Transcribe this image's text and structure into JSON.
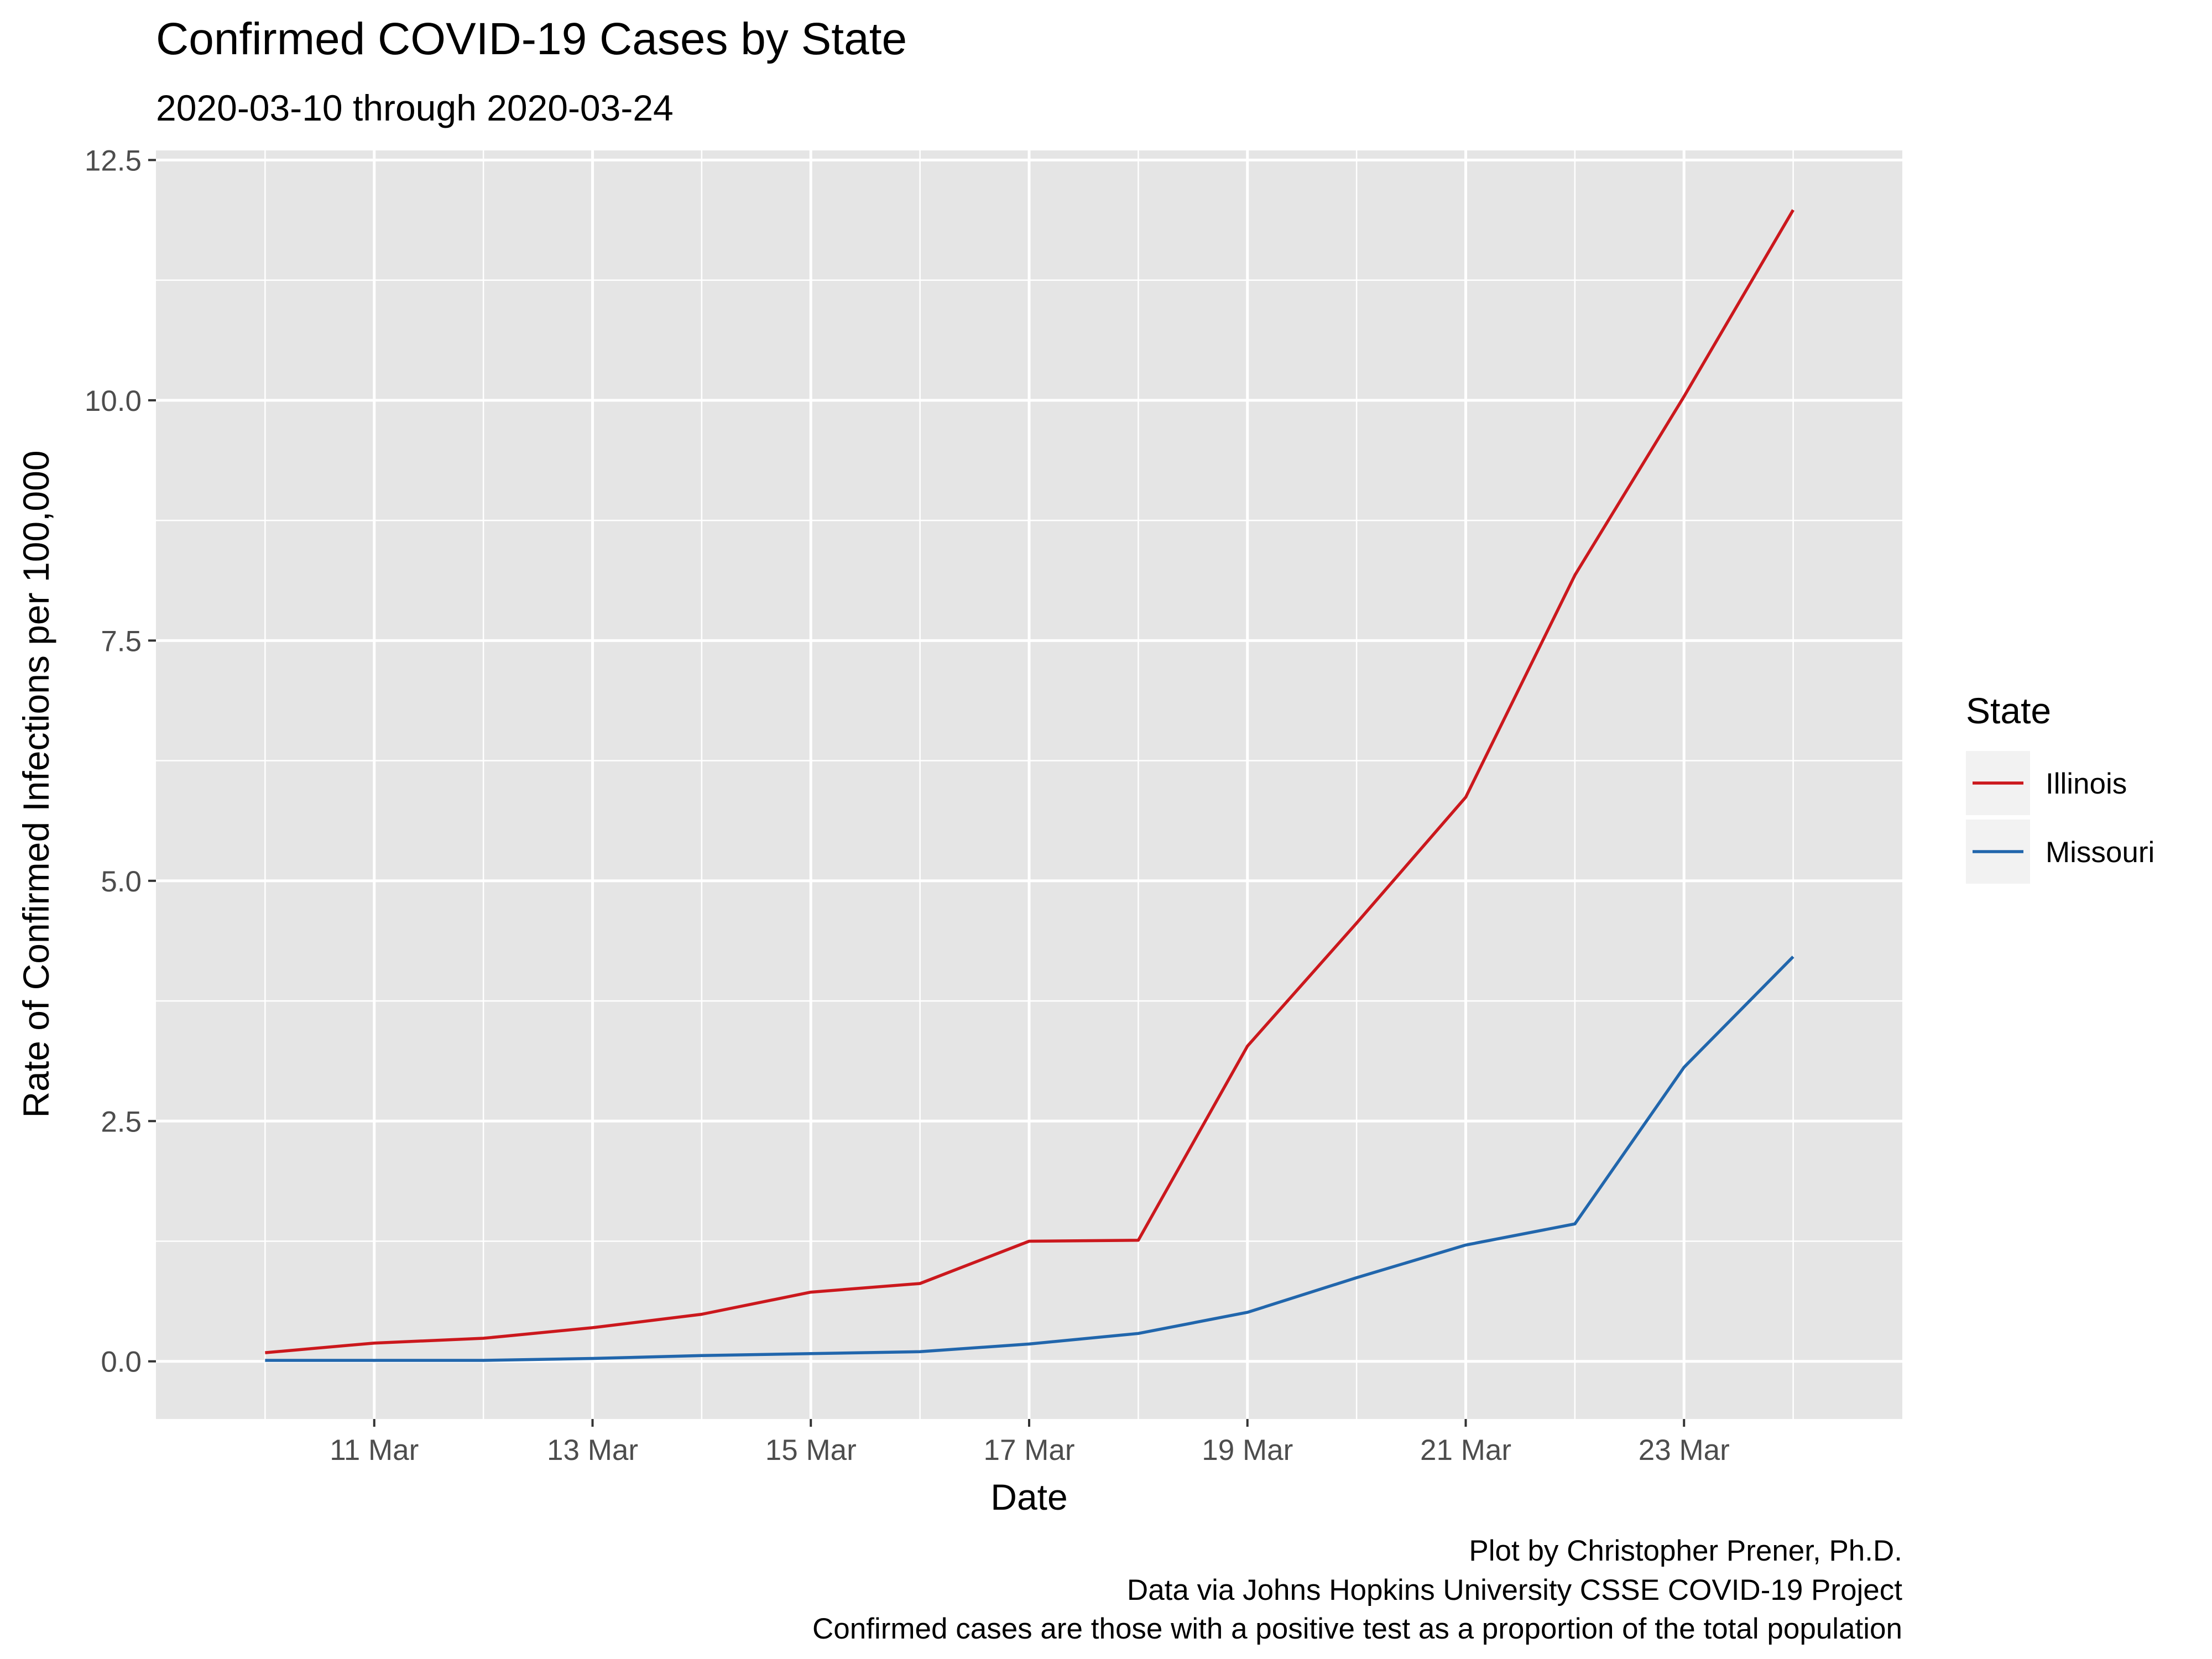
{
  "chart_data": {
    "type": "line",
    "title": "Confirmed COVID-19 Cases by State",
    "subtitle": "2020-03-10 through 2020-03-24",
    "xlabel": "Date",
    "ylabel": "Rate of Confirmed Infections per 100,000",
    "x": [
      "2020-03-10",
      "2020-03-11",
      "2020-03-12",
      "2020-03-13",
      "2020-03-14",
      "2020-03-15",
      "2020-03-16",
      "2020-03-17",
      "2020-03-18",
      "2020-03-19",
      "2020-03-20",
      "2020-03-21",
      "2020-03-22",
      "2020-03-23",
      "2020-03-24"
    ],
    "x_tick_dates": [
      "2020-03-11",
      "2020-03-13",
      "2020-03-15",
      "2020-03-17",
      "2020-03-19",
      "2020-03-21",
      "2020-03-23"
    ],
    "x_tick_labels": [
      "11 Mar",
      "13 Mar",
      "15 Mar",
      "17 Mar",
      "19 Mar",
      "21 Mar",
      "23 Mar"
    ],
    "xlim": [
      "2020-03-09",
      "2020-03-25"
    ],
    "y_ticks": [
      0,
      2.5,
      5,
      7.5,
      10,
      12.5
    ],
    "y_tick_labels": [
      "0.0",
      "2.5",
      "5.0",
      "7.5",
      "10.0",
      "12.5"
    ],
    "ylim": [
      -0.6,
      12.6
    ],
    "grid": true,
    "panel_background": "#e5e5e5",
    "legend": {
      "title": "State",
      "position": "right"
    },
    "series": [
      {
        "name": "Illinois",
        "color": "#cb181d",
        "values": [
          0.09,
          0.19,
          0.24,
          0.35,
          0.49,
          0.72,
          0.81,
          1.25,
          1.26,
          3.28,
          4.56,
          5.87,
          8.18,
          10.04,
          11.98
        ]
      },
      {
        "name": "Missouri",
        "color": "#2166ac",
        "values": [
          0.01,
          0.01,
          0.01,
          0.03,
          0.06,
          0.08,
          0.1,
          0.18,
          0.29,
          0.51,
          0.87,
          1.21,
          1.43,
          3.06,
          4.21
        ]
      }
    ],
    "caption": [
      "Plot by Christopher Prener, Ph.D.",
      "Data via Johns Hopkins University CSSE COVID-19 Project",
      "Confirmed cases are those with a positive test as a proportion of the total population"
    ]
  }
}
